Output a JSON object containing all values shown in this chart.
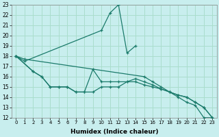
{
  "xlabel": "Humidex (Indice chaleur)",
  "background_color": "#c8eeee",
  "grid_color": "#aaddcc",
  "line_color": "#1a7a6a",
  "xlim": [
    -0.5,
    23.5
  ],
  "ylim": [
    12,
    23
  ],
  "xticks": [
    0,
    1,
    2,
    3,
    4,
    5,
    6,
    7,
    8,
    9,
    10,
    11,
    12,
    13,
    14,
    15,
    16,
    17,
    18,
    19,
    20,
    21,
    22,
    23
  ],
  "yticks": [
    12,
    13,
    14,
    15,
    16,
    17,
    18,
    19,
    20,
    21,
    22,
    23
  ],
  "series": [
    {
      "x": [
        0,
        1,
        2,
        3,
        4,
        5,
        6,
        7,
        8,
        9,
        10,
        11,
        12,
        13,
        14,
        15,
        16,
        17,
        18,
        19,
        20,
        21,
        22,
        23
      ],
      "y": [
        18,
        17.5,
        null,
        null,
        null,
        null,
        null,
        null,
        null,
        null,
        20.5,
        22.2,
        23,
        18.3,
        19,
        null,
        null,
        null,
        null,
        null,
        null,
        null,
        null,
        null
      ]
    },
    {
      "x": [
        0,
        1,
        2,
        3,
        4,
        5,
        6,
        7,
        8,
        9,
        10,
        11,
        12,
        13,
        14,
        15,
        16,
        17,
        18,
        19,
        20,
        21,
        22,
        23
      ],
      "y": [
        18,
        17.7,
        null,
        null,
        null,
        null,
        null,
        null,
        null,
        null,
        null,
        null,
        null,
        null,
        null,
        16,
        15.5,
        15,
        14.5,
        14,
        13.5,
        13.2,
        12,
        12
      ]
    },
    {
      "x": [
        0,
        2,
        3,
        4,
        5,
        6,
        7,
        8,
        9,
        10,
        11,
        12,
        13,
        14,
        15,
        16,
        17,
        18,
        19,
        20,
        21,
        22,
        23
      ],
      "y": [
        18,
        16.5,
        16,
        15,
        15,
        15,
        14.5,
        14.5,
        16.7,
        15.5,
        15.5,
        15.5,
        15.5,
        15.8,
        15.5,
        15.2,
        14.8,
        14.5,
        14.2,
        14,
        13.5,
        13,
        12
      ]
    },
    {
      "x": [
        0,
        2,
        3,
        4,
        5,
        6,
        7,
        8,
        9,
        10,
        11,
        12,
        13,
        14,
        15,
        16,
        17,
        18,
        19,
        20,
        21,
        22,
        23
      ],
      "y": [
        18,
        16.5,
        16,
        15,
        15,
        15,
        14.5,
        14.5,
        14.5,
        15,
        15,
        15,
        15.5,
        15.5,
        15.2,
        15,
        14.8,
        14.5,
        14.2,
        14,
        13.5,
        13,
        12
      ]
    }
  ]
}
